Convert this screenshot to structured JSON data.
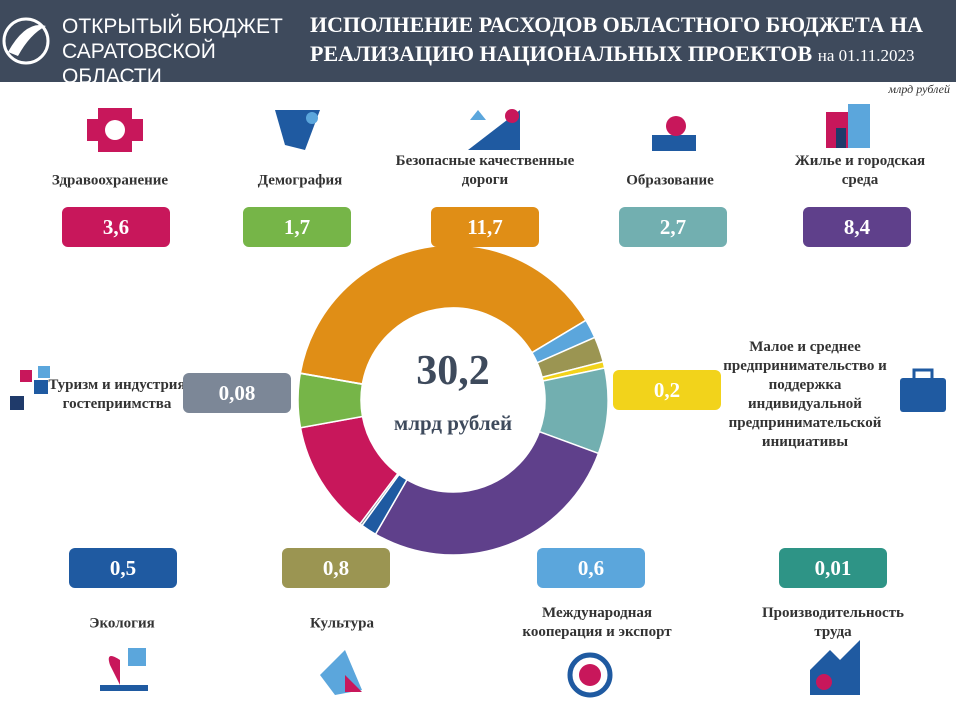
{
  "header": {
    "org": "ОТКРЫТЫЙ БЮДЖЕТ САРАТОВСКОЙ ОБЛАСТИ",
    "title": "ИСПОЛНЕНИЕ РАСХОДОВ ОБЛАСТНОГО БЮДЖЕТА НА РЕАЛИЗАЦИЮ НАЦИОНАЛЬНЫХ ПРОЕКТОВ",
    "date": "на 01.11.2023"
  },
  "chart_data": {
    "type": "pie",
    "unit": "млрд рублей",
    "total": {
      "value": 30.2,
      "label": "30,2"
    },
    "categories": [
      "Безопасные качественные дороги",
      "Международная кооперация и экспорт",
      "Культура",
      "Малое и среднее предпринимательство и поддержка индивидуальной предпринимательской инициативы",
      "Образование",
      "Жилье и городская среда",
      "Экология",
      "Туризм и индустрия гостеприимства",
      "Здравоохранение",
      "Демография",
      "Производительность труда"
    ],
    "values": [
      11.7,
      0.6,
      0.8,
      0.2,
      2.7,
      8.4,
      0.5,
      0.08,
      3.6,
      1.7,
      0.01
    ],
    "value_labels": [
      "11,7",
      "0,6",
      "0,8",
      "0,2",
      "2,7",
      "8,4",
      "0,5",
      "0,08",
      "3,6",
      "1,7",
      "0,01"
    ],
    "colors": [
      "#e08e16",
      "#5ba6dc",
      "#9b9552",
      "#f2d31b",
      "#72afb0",
      "#5f408b",
      "#1f5aa1",
      "#7c8797",
      "#c8175b",
      "#76b548",
      "#2e9486"
    ]
  }
}
